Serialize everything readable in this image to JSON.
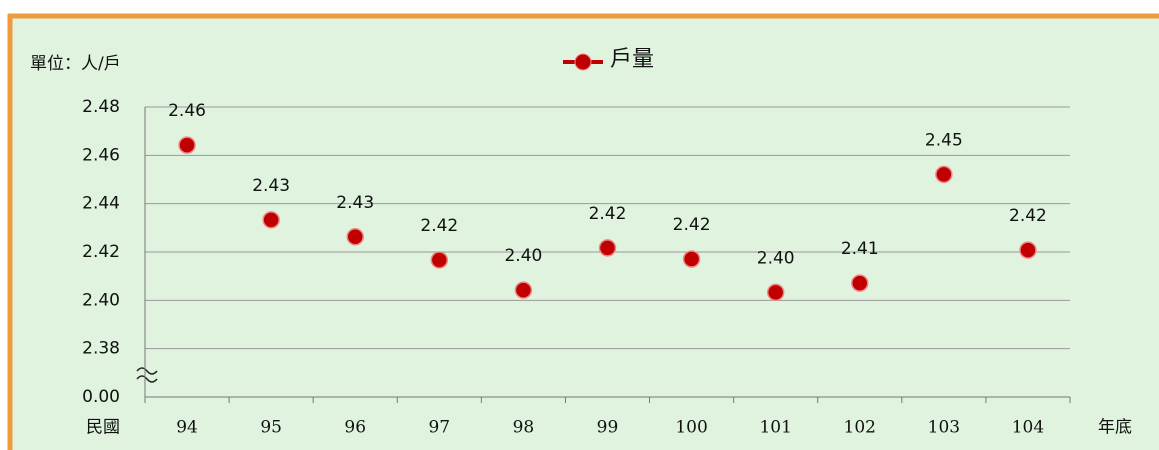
{
  "chart_data": {
    "type": "line",
    "unit_label": "單位：人/戶",
    "x_label_left": "民國",
    "x_label_right": "年底",
    "categories": [
      "94",
      "95",
      "96",
      "97",
      "98",
      "99",
      "100",
      "101",
      "102",
      "103",
      "104"
    ],
    "series": [
      {
        "name": "戶量",
        "color": "#c00000",
        "values": [
          2.4642,
          2.4333,
          2.4263,
          2.4167,
          2.4042,
          2.4217,
          2.4171,
          2.4033,
          2.4071,
          2.4521,
          2.4208
        ],
        "value_labels": [
          "2.46",
          "2.43",
          "2.43",
          "2.42",
          "2.40",
          "2.42",
          "2.42",
          "2.40",
          "2.41",
          "2.45",
          "2.42"
        ]
      }
    ],
    "ylim": [
      0,
      2.48
    ],
    "y_break": [
      0,
      2.38
    ],
    "yticks": [
      {
        "value": 0,
        "label": "0.00"
      },
      2.38,
      {
        "value": 2.4,
        "label": "2.40"
      },
      2.42,
      2.44,
      2.46,
      2.48
    ],
    "grid": true,
    "legend": "top"
  }
}
